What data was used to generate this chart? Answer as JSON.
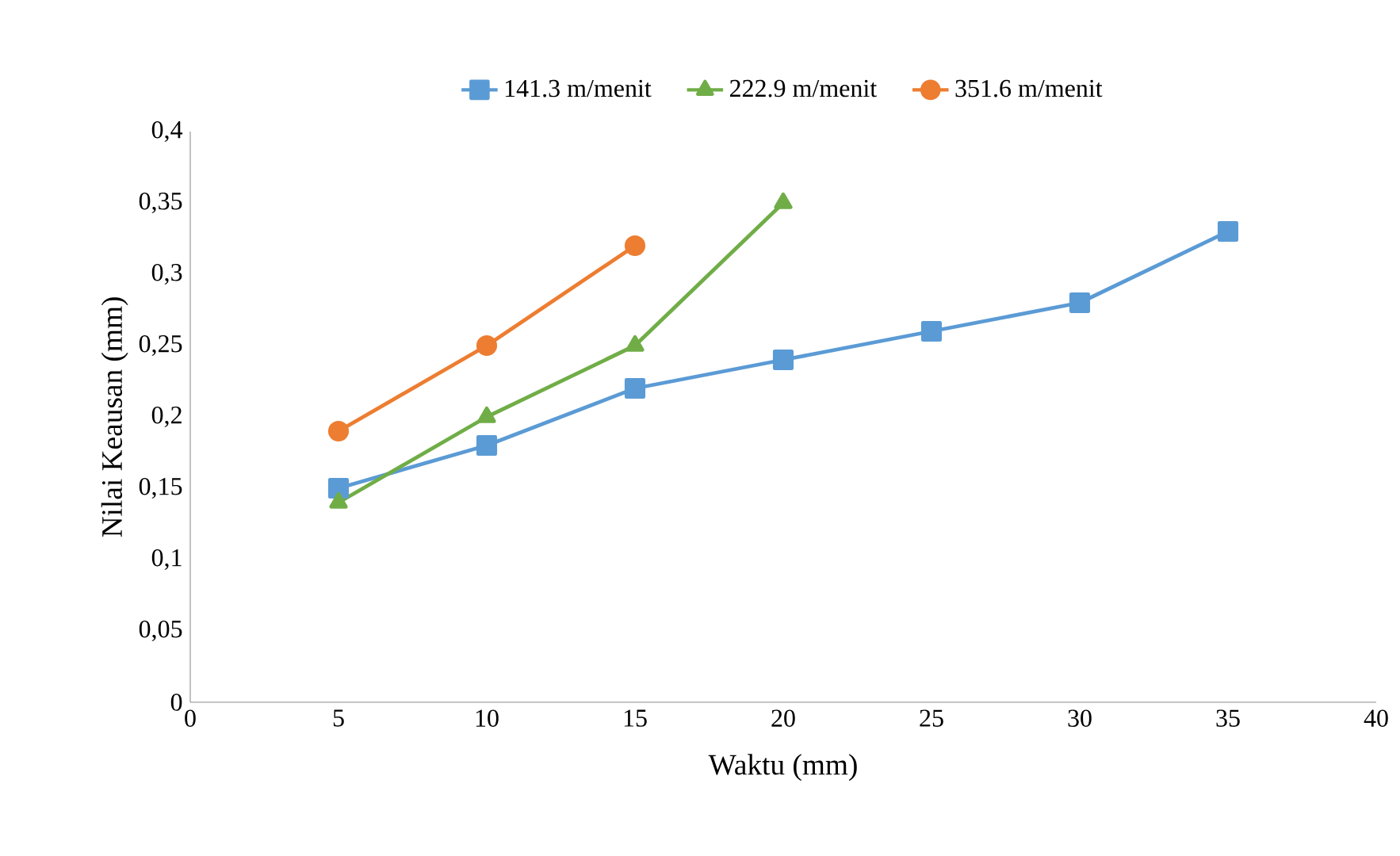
{
  "chart_data": {
    "type": "line",
    "xlabel": "Waktu (mm)",
    "ylabel": "Nilai Keausan (mm)",
    "xlim": [
      0,
      40
    ],
    "xticks": [
      0,
      5,
      10,
      15,
      20,
      25,
      30,
      35,
      40
    ],
    "ylim": [
      0,
      0.4
    ],
    "yticks": [
      0,
      {
        "value": 0.05,
        "label": "0,05"
      },
      {
        "value": 0.1,
        "label": "0,1"
      },
      {
        "value": 0.15,
        "label": "0,15"
      },
      {
        "value": 0.2,
        "label": "0,2"
      },
      {
        "value": 0.25,
        "label": "0,25"
      },
      {
        "value": 0.3,
        "label": "0,3"
      },
      {
        "value": 0.35,
        "label": "0,35"
      },
      {
        "value": 0.4,
        "label": "0,4"
      }
    ],
    "legend": "top",
    "series": [
      {
        "name": "141.3 m/menit",
        "color": "#5b9bd5",
        "marker": "square",
        "x": [
          5,
          10,
          15,
          20,
          25,
          30,
          35
        ],
        "values": [
          0.15,
          0.18,
          0.22,
          0.24,
          0.26,
          0.28,
          0.33
        ]
      },
      {
        "name": "222.9 m/menit",
        "color": "#70ad47",
        "marker": "triangle",
        "x": [
          5,
          10,
          15,
          20
        ],
        "values": [
          0.14,
          0.2,
          0.25,
          0.35
        ]
      },
      {
        "name": "351.6 m/menit",
        "color": "#ed7d31",
        "marker": "circle",
        "x": [
          5,
          10,
          15
        ],
        "values": [
          0.19,
          0.25,
          0.32
        ]
      }
    ]
  }
}
